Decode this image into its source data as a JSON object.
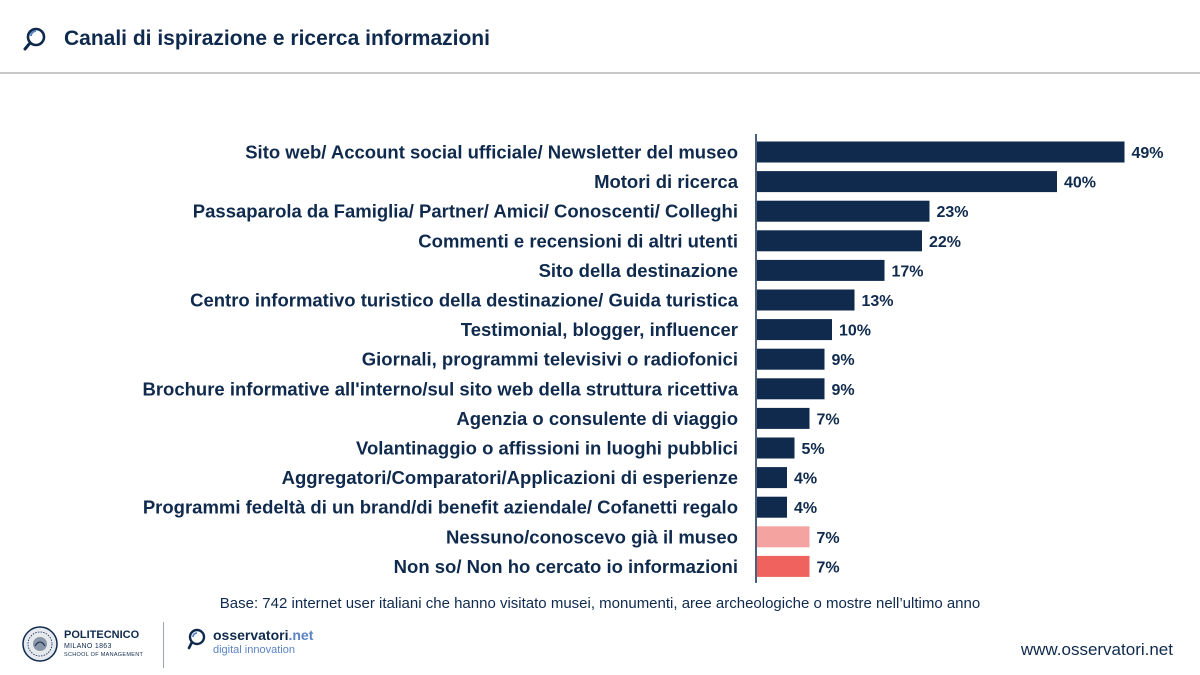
{
  "header": {
    "title": "Canali di ispirazione e ricerca informazioni",
    "icon": "search-magnifier-icon"
  },
  "chart_data": {
    "type": "bar",
    "orientation": "horizontal",
    "title": "Canali di ispirazione e ricerca informazioni",
    "xlabel": "",
    "ylabel": "",
    "xlim": [
      0,
      50
    ],
    "grid": false,
    "unit": "%",
    "categories": [
      "Sito web/ Account social ufficiale/ Newsletter del museo",
      "Motori di ricerca",
      "Passaparola da Famiglia/ Partner/ Amici/ Conoscenti/ Colleghi",
      "Commenti e recensioni di altri utenti",
      "Sito della destinazione ",
      "Centro informativo turistico della destinazione/ Guida turistica",
      "Testimonial, blogger, influencer",
      "Giornali, programmi televisivi o radiofonici",
      "Brochure informative all'interno/sul sito web della struttura ricettiva ",
      "Agenzia o consulente di viaggio",
      "Volantinaggio o affissioni in luoghi pubblici",
      "Aggregatori/Comparatori/Applicazioni di esperienze",
      "Programmi fedeltà di un brand/di benefit aziendale/ Cofanetti regalo",
      "Nessuno/conoscevo già il museo",
      "Non so/ Non ho cercato io informazioni"
    ],
    "values": [
      49,
      40,
      23,
      22,
      17,
      13,
      10,
      9,
      9,
      7,
      5,
      4,
      4,
      7,
      7
    ],
    "value_labels": [
      "49%",
      "40%",
      "23%",
      "22%",
      "17%",
      "13%",
      "10%",
      "9%",
      "9%",
      "7%",
      "5%",
      "4%",
      "4%",
      "7%",
      "7%"
    ],
    "colors": [
      "#0f2a4d",
      "#0f2a4d",
      "#0f2a4d",
      "#0f2a4d",
      "#0f2a4d",
      "#0f2a4d",
      "#0f2a4d",
      "#0f2a4d",
      "#0f2a4d",
      "#0f2a4d",
      "#0f2a4d",
      "#0f2a4d",
      "#0f2a4d",
      "#f4a3a0",
      "#f0625e"
    ]
  },
  "note": "Base: 742 internet user italiani che hanno visitato musei, monumenti, aree archeologiche o mostre nell’ultimo anno",
  "footer": {
    "polimi": {
      "name": "POLITECNICO",
      "sub1": "MILANO 1863",
      "sub2": "SCHOOL OF MANAGEMENT"
    },
    "osservatori": {
      "name": "osservatori",
      "name_suffix": ".net",
      "sub": "digital innovation"
    },
    "url": "www.osservatori.net"
  },
  "colors": {
    "primary": "#0f2a4d",
    "accent_blue": "#5b84c4",
    "light_red": "#f4a3a0",
    "red": "#f0625e"
  }
}
